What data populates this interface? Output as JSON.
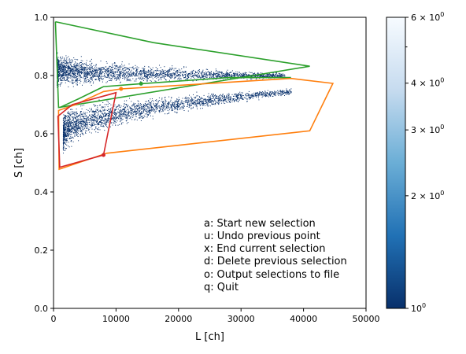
{
  "chart_data": {
    "type": "scatter",
    "xlabel": "L [ch]",
    "ylabel": "S [ch]",
    "xlim": [
      0,
      50000
    ],
    "ylim": [
      0,
      1.0
    ],
    "xticks": [
      0,
      10000,
      20000,
      30000,
      40000,
      50000
    ],
    "xtick_labels": [
      "0",
      "10000",
      "20000",
      "30000",
      "40000",
      "50000"
    ],
    "yticks": [
      0.0,
      0.2,
      0.4,
      0.6,
      0.8,
      1.0
    ],
    "ytick_labels": [
      "0.0",
      "0.2",
      "0.4",
      "0.6",
      "0.8",
      "1.0"
    ],
    "grid": false,
    "colormap": "Blues_r (log scale)",
    "colorbar": {
      "scale": "log",
      "min": 1,
      "max": 6,
      "ticks": [
        1,
        2,
        3,
        4,
        6
      ],
      "tick_labels": [
        {
          "base": "10",
          "exp": "0"
        },
        {
          "base": "2 × 10",
          "exp": "0"
        },
        {
          "base": "3 × 10",
          "exp": "0"
        },
        {
          "base": "4 × 10",
          "exp": "0"
        },
        {
          "base": "6 × 10",
          "exp": "0"
        }
      ],
      "minor_ticks": [
        5
      ]
    },
    "density_bands": [
      {
        "name": "upper",
        "x_start": 500,
        "x_end": 37000,
        "y_center": 0.82,
        "y_end": 0.8,
        "spread_start": 0.05,
        "spread_end": 0.008,
        "color": "#08306b"
      },
      {
        "name": "lower",
        "x_start": 1500,
        "x_end": 38000,
        "y_center": 0.6,
        "y_end": 0.745,
        "spread_start": 0.06,
        "spread_end": 0.01,
        "color": "#08306b"
      }
    ],
    "selections": [
      {
        "color": "#2ca02c",
        "points": [
          [
            300,
            0.985
          ],
          [
            16000,
            0.913
          ],
          [
            41000,
            0.832
          ],
          [
            800,
            0.69
          ],
          [
            300,
            0.985
          ]
        ]
      },
      {
        "color": "#2ca02c",
        "points": [
          [
            1000,
            0.69
          ],
          [
            4000,
            0.72
          ],
          [
            8000,
            0.762
          ],
          [
            14000,
            0.772
          ],
          [
            28000,
            0.793
          ],
          [
            38000,
            0.793
          ]
        ],
        "markers": [
          [
            14000,
            0.772
          ]
        ]
      },
      {
        "color": "#ff7f0e",
        "points": [
          [
            38000,
            0.79
          ],
          [
            44700,
            0.773
          ],
          [
            41000,
            0.61
          ],
          [
            8500,
            0.533
          ],
          [
            900,
            0.478
          ],
          [
            800,
            0.68
          ],
          [
            3500,
            0.7
          ],
          [
            8000,
            0.745
          ],
          [
            10800,
            0.754
          ],
          [
            38000,
            0.79
          ]
        ],
        "markers": [
          [
            10800,
            0.754
          ]
        ]
      },
      {
        "color": "#d62728",
        "points": [
          [
            8000,
            0.527
          ],
          [
            1000,
            0.485
          ],
          [
            700,
            0.66
          ],
          [
            3000,
            0.7
          ],
          [
            10000,
            0.741
          ],
          [
            8000,
            0.527
          ]
        ],
        "markers": [
          [
            8000,
            0.527
          ]
        ]
      }
    ],
    "annotations": [
      "a: Start new selection",
      "u: Undo previous point",
      "x: End current selection",
      "d: Delete previous selection",
      "o: Output selections to file",
      "q: Quit"
    ]
  }
}
